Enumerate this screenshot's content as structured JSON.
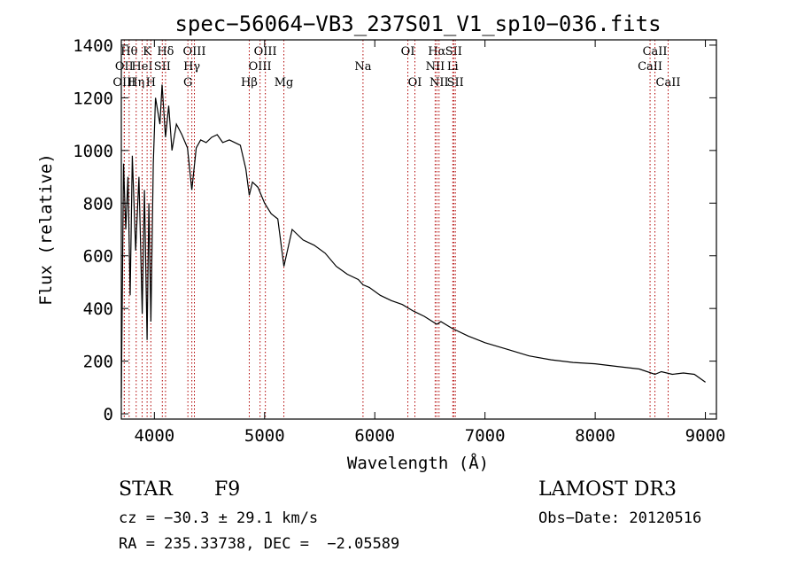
{
  "chart_data": {
    "type": "line",
    "title": "spec−56064−VB3_237S01_V1_sp10−036.fits",
    "xlabel": "Wavelength (Å)",
    "ylabel": "Flux (relative)",
    "xlim": [
      3700,
      9100
    ],
    "ylim": [
      -20,
      1420
    ],
    "xticks": [
      4000,
      5000,
      6000,
      7000,
      8000,
      9000
    ],
    "yticks": [
      0,
      200,
      400,
      600,
      800,
      1000,
      1200,
      1400
    ],
    "series": [
      {
        "name": "spectrum",
        "x": [
          3700,
          3720,
          3740,
          3760,
          3780,
          3800,
          3830,
          3860,
          3890,
          3910,
          3934,
          3950,
          3968,
          3990,
          4010,
          4030,
          4050,
          4070,
          4101,
          4130,
          4160,
          4200,
          4250,
          4300,
          4340,
          4380,
          4420,
          4470,
          4520,
          4570,
          4620,
          4680,
          4730,
          4780,
          4830,
          4861,
          4890,
          4940,
          5000,
          5060,
          5120,
          5175,
          5250,
          5350,
          5450,
          5550,
          5650,
          5750,
          5850,
          5893,
          5950,
          6050,
          6150,
          6250,
          6350,
          6450,
          6563,
          6600,
          6700,
          6850,
          7000,
          7200,
          7400,
          7600,
          7800,
          8000,
          8200,
          8400,
          8542,
          8600,
          8700,
          8800,
          8900,
          9000
        ],
        "y": [
          60,
          950,
          700,
          900,
          450,
          980,
          620,
          900,
          380,
          850,
          280,
          800,
          350,
          950,
          1200,
          1150,
          1100,
          1250,
          1050,
          1170,
          1000,
          1100,
          1060,
          1010,
          850,
          1010,
          1040,
          1030,
          1050,
          1060,
          1030,
          1040,
          1030,
          1020,
          930,
          830,
          880,
          860,
          800,
          760,
          740,
          560,
          700,
          660,
          640,
          610,
          560,
          530,
          510,
          490,
          480,
          450,
          430,
          415,
          390,
          370,
          340,
          350,
          325,
          295,
          270,
          245,
          220,
          205,
          195,
          190,
          180,
          170,
          150,
          160,
          150,
          155,
          150,
          120
        ]
      }
    ],
    "lines": [
      {
        "label": "Hθ",
        "x": 3771,
        "row": 1
      },
      {
        "label": "OII",
        "x": 3727,
        "row": 2
      },
      {
        "label": "OIII",
        "x": 3727,
        "row": 3
      },
      {
        "label": "K",
        "x": 3934,
        "row": 1
      },
      {
        "label": "HeI",
        "x": 3889,
        "row": 2
      },
      {
        "label": "Hη",
        "x": 3835,
        "row": 3
      },
      {
        "label": "H",
        "x": 3968,
        "row": 3
      },
      {
        "label": "SII",
        "x": 4072,
        "row": 2
      },
      {
        "label": "Hδ",
        "x": 4101,
        "row": 1
      },
      {
        "label": "OIII",
        "x": 4363,
        "row": 1
      },
      {
        "label": "Hγ",
        "x": 4340,
        "row": 2
      },
      {
        "label": "G",
        "x": 4304,
        "row": 3
      },
      {
        "label": "Hβ",
        "x": 4861,
        "row": 3
      },
      {
        "label": "OIII",
        "x": 5007,
        "row": 1
      },
      {
        "label": "OIII",
        "x": 4959,
        "row": 2
      },
      {
        "label": "Mg",
        "x": 5175,
        "row": 3
      },
      {
        "label": "Na",
        "x": 5893,
        "row": 2
      },
      {
        "label": "OI",
        "x": 6300,
        "row": 1
      },
      {
        "label": "OI",
        "x": 6364,
        "row": 3
      },
      {
        "label": "Hα",
        "x": 6563,
        "row": 1
      },
      {
        "label": "NII",
        "x": 6548,
        "row": 2
      },
      {
        "label": "NII",
        "x": 6583,
        "row": 3
      },
      {
        "label": "SII",
        "x": 6716,
        "row": 1
      },
      {
        "label": "Li",
        "x": 6708,
        "row": 2
      },
      {
        "label": "SII",
        "x": 6731,
        "row": 3
      },
      {
        "label": "CaII",
        "x": 8542,
        "row": 1
      },
      {
        "label": "CaII",
        "x": 8498,
        "row": 2
      },
      {
        "label": "CaII",
        "x": 8662,
        "row": 3
      }
    ]
  },
  "info": {
    "class_label": "STAR",
    "subclass": "F9",
    "survey": "LAMOST DR3",
    "cz": "cz = −30.3 ± 29.1 km/s",
    "obs_date": "Obs−Date: 20120516",
    "coords": "RA = 235.33738, DEC =  −2.05589"
  }
}
